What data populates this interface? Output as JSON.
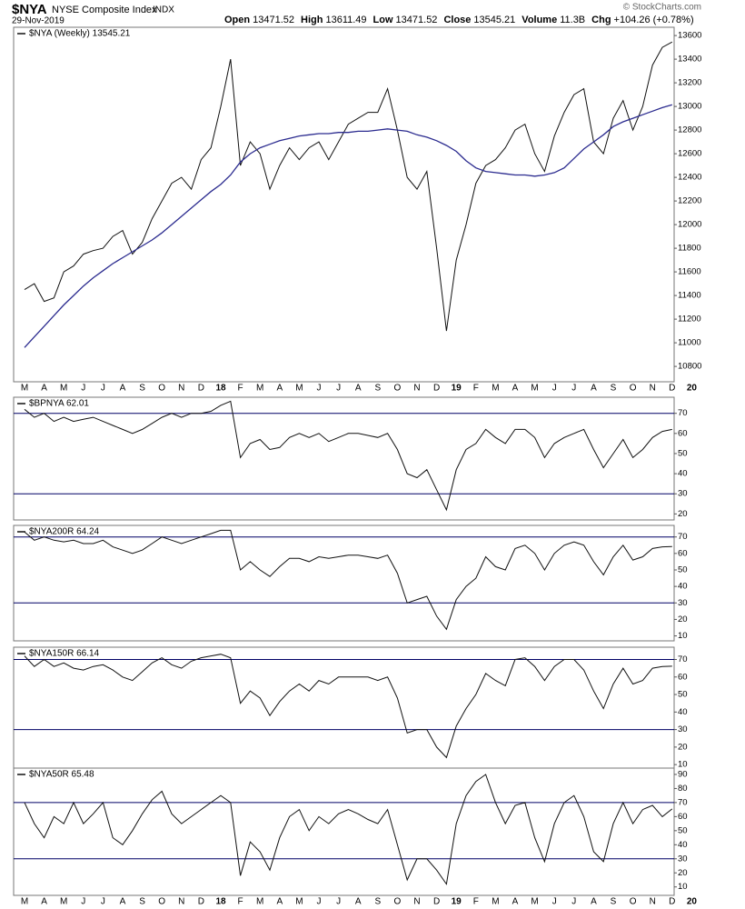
{
  "header": {
    "symbol": "$NYA",
    "name": "NYSE Composite Index",
    "exchange": "INDX",
    "date": "29-Nov-2019",
    "fields": [
      {
        "label": "Open",
        "value": "13471.52"
      },
      {
        "label": "High",
        "value": "13611.49"
      },
      {
        "label": "Low",
        "value": "13471.52"
      },
      {
        "label": "Close",
        "value": "13545.21"
      },
      {
        "label": "Volume",
        "value": "11.3B"
      },
      {
        "label": "Chg",
        "value": "+104.26 (+0.78%)"
      }
    ],
    "credit": "© StockCharts.com"
  },
  "chart_data": [
    {
      "type": "line",
      "categories": [
        "M",
        null,
        "A",
        null,
        "M",
        null,
        "J",
        null,
        "J",
        null,
        "A",
        null,
        "S",
        null,
        "O",
        null,
        "N",
        null,
        "D",
        null,
        "18",
        null,
        "F",
        null,
        "M",
        null,
        "A",
        null,
        "M",
        null,
        "J",
        null,
        "J",
        null,
        "A",
        null,
        "S",
        null,
        "O",
        null,
        "N",
        null,
        "D",
        null,
        "19",
        null,
        "F",
        null,
        "M",
        null,
        "A",
        null,
        "M",
        null,
        "J",
        null,
        "J",
        null,
        "A",
        null,
        "S",
        null,
        "O",
        null,
        "N",
        null,
        "D",
        null,
        "20"
      ],
      "series": [
        {
          "name": "$NYA (Weekly) 13545.21",
          "color": "#111111",
          "values": [
            11450,
            11500,
            11350,
            11380,
            11600,
            11650,
            11750,
            11780,
            11800,
            11900,
            11950,
            11750,
            11850,
            12050,
            12200,
            12350,
            12400,
            12300,
            12550,
            12650,
            13000,
            13400,
            12500,
            12700,
            12600,
            12300,
            12500,
            12650,
            12550,
            12650,
            12700,
            12550,
            12700,
            12850,
            12900,
            12950,
            12950,
            13150,
            12800,
            12400,
            12300,
            12450,
            11800,
            11100,
            11700,
            12000,
            12350,
            12500,
            12550,
            12650,
            12800,
            12850,
            12600,
            12450,
            12750,
            12950,
            13100,
            13150,
            12700,
            12600,
            12900,
            13050,
            12800,
            13000,
            13350,
            13500,
            13545.21,
            null,
            null
          ]
        },
        {
          "color": "#2b2b8f",
          "values": [
            10960,
            11050,
            11140,
            11230,
            11320,
            11400,
            11480,
            11550,
            11610,
            11670,
            11720,
            11770,
            11820,
            11870,
            11930,
            12000,
            12070,
            12140,
            12210,
            12280,
            12340,
            12420,
            12530,
            12600,
            12650,
            12680,
            12710,
            12730,
            12750,
            12760,
            12770,
            12770,
            12780,
            12780,
            12790,
            12790,
            12800,
            12810,
            12800,
            12790,
            12760,
            12740,
            12710,
            12670,
            12620,
            12540,
            12480,
            12450,
            12440,
            12430,
            12420,
            12420,
            12410,
            12420,
            12440,
            12480,
            12560,
            12640,
            12700,
            12760,
            12830,
            12870,
            12900,
            12930,
            12960,
            12990,
            13015,
            null,
            null
          ]
        }
      ],
      "ylim": [
        10670,
        13670
      ],
      "yticks": [
        10800,
        11000,
        11200,
        11400,
        11600,
        11800,
        12000,
        12200,
        12400,
        12600,
        12800,
        13000,
        13200,
        13400,
        13600
      ]
    },
    {
      "type": "line",
      "series": [
        {
          "name": "$BPNYA 62.01",
          "color": "#111111",
          "values": [
            72,
            68,
            70,
            66,
            68,
            66,
            67,
            68,
            66,
            64,
            62,
            60,
            62,
            65,
            68,
            70,
            68,
            70,
            70,
            71,
            74,
            76,
            48,
            55,
            57,
            52,
            53,
            58,
            60,
            58,
            60,
            56,
            58,
            60,
            60,
            59,
            58,
            60,
            52,
            40,
            38,
            42,
            32,
            22,
            42,
            52,
            55,
            62,
            58,
            55,
            62,
            62,
            58,
            48,
            55,
            58,
            60,
            62,
            52,
            43,
            50,
            57,
            48,
            52,
            58,
            61,
            62.01,
            null,
            null
          ]
        }
      ],
      "ylim": [
        17,
        78
      ],
      "yticks": [
        20,
        30,
        40,
        50,
        60,
        70
      ],
      "hlines": [
        30,
        70
      ],
      "hline_color": "#000066"
    },
    {
      "type": "line",
      "series": [
        {
          "name": "$NYA200R 64.24",
          "color": "#111111",
          "values": [
            73,
            68,
            70,
            68,
            67,
            68,
            66,
            66,
            68,
            64,
            62,
            60,
            62,
            66,
            70,
            68,
            66,
            68,
            70,
            72,
            74,
            74,
            50,
            55,
            50,
            46,
            52,
            57,
            57,
            55,
            58,
            57,
            58,
            59,
            59,
            58,
            57,
            59,
            48,
            30,
            32,
            34,
            22,
            14,
            32,
            40,
            45,
            58,
            52,
            50,
            63,
            65,
            60,
            50,
            60,
            65,
            67,
            65,
            55,
            47,
            58,
            65,
            56,
            58,
            63,
            64,
            64.24,
            null,
            null
          ]
        }
      ],
      "ylim": [
        7,
        77
      ],
      "yticks": [
        10,
        20,
        30,
        40,
        50,
        60,
        70
      ],
      "hlines": [
        30,
        70
      ],
      "hline_color": "#000066"
    },
    {
      "type": "line",
      "series": [
        {
          "name": "$NYA150R 66.14",
          "color": "#111111",
          "values": [
            72,
            66,
            70,
            66,
            68,
            65,
            64,
            66,
            67,
            64,
            60,
            58,
            63,
            68,
            71,
            67,
            65,
            69,
            71,
            72,
            73,
            71,
            45,
            52,
            48,
            38,
            46,
            52,
            56,
            52,
            58,
            56,
            60,
            60,
            60,
            60,
            58,
            60,
            48,
            28,
            30,
            30,
            20,
            14,
            32,
            42,
            50,
            62,
            58,
            55,
            70,
            71,
            66,
            58,
            66,
            70,
            70,
            64,
            52,
            42,
            56,
            65,
            56,
            58,
            65,
            66,
            66.14,
            null,
            null
          ]
        }
      ],
      "ylim": [
        8,
        77
      ],
      "yticks": [
        10,
        20,
        30,
        40,
        50,
        60,
        70
      ],
      "hlines": [
        30,
        70
      ],
      "hline_color": "#000066"
    },
    {
      "type": "line",
      "series": [
        {
          "name": "$NYA50R 65.48",
          "color": "#111111",
          "values": [
            70,
            55,
            45,
            60,
            55,
            70,
            55,
            62,
            70,
            45,
            40,
            50,
            62,
            72,
            78,
            62,
            55,
            60,
            65,
            70,
            75,
            70,
            18,
            42,
            35,
            22,
            45,
            60,
            65,
            50,
            60,
            55,
            62,
            65,
            62,
            58,
            55,
            65,
            40,
            15,
            30,
            30,
            22,
            12,
            55,
            75,
            85,
            90,
            70,
            55,
            68,
            70,
            45,
            28,
            55,
            70,
            75,
            60,
            35,
            28,
            55,
            70,
            55,
            65,
            68,
            60,
            65.48,
            null,
            null
          ]
        }
      ],
      "ylim": [
        4,
        94.5
      ],
      "yticks": [
        10,
        20,
        30,
        40,
        50,
        60,
        70,
        80,
        90
      ],
      "hlines": [
        30,
        70
      ],
      "hline_color": "#000066"
    }
  ]
}
